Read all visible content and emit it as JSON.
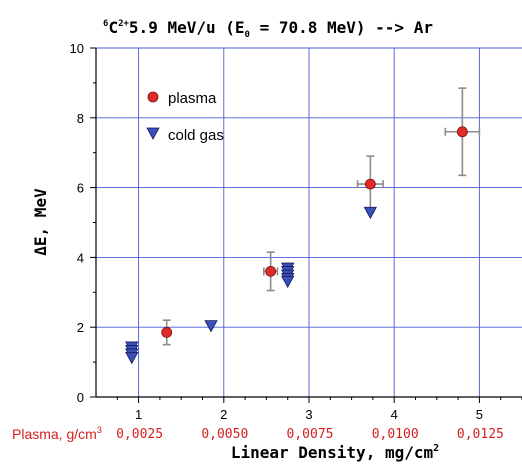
{
  "chart_data": {
    "type": "scatter",
    "title": {
      "super": "6",
      "base": "C",
      "charge": "2+",
      "rest_a": "5.9 MeV/u (E",
      "sub": "0",
      "rest_b": " = 70.8 MeV) --> Ar"
    },
    "xlabel": {
      "base": "Linear Density, mg/cm",
      "super": "2"
    },
    "ylabel": "ΔE, MeV",
    "xlim": [
      0.5,
      5.5
    ],
    "ylim": [
      0,
      10
    ],
    "x_ticks": [
      "1",
      "2",
      "3",
      "4",
      "5"
    ],
    "x_tick_values": [
      1,
      2,
      3,
      4,
      5
    ],
    "y_ticks": [
      "0",
      "2",
      "4",
      "6",
      "8",
      "10"
    ],
    "y_tick_values": [
      0,
      2,
      4,
      6,
      8,
      10
    ],
    "grid": true,
    "legend_position": "top-left",
    "plasma_axis": {
      "label": {
        "base": "Plasma, g/cm",
        "super": "3"
      },
      "ticks": [
        "0,0025",
        "0,0050",
        "0,0075",
        "0,0100",
        "0,0125"
      ],
      "color": "#d62020"
    },
    "series": [
      {
        "name": "plasma",
        "marker": "circle",
        "color": "#e02a2a",
        "points": [
          {
            "x": 1.33,
            "y": 1.85,
            "xerr": 0,
            "yerr": 0.35
          },
          {
            "x": 2.55,
            "y": 3.6,
            "xerr": 0.08,
            "yerr": 0.55
          },
          {
            "x": 3.72,
            "y": 6.1,
            "xerr": 0.15,
            "yerr": 0.8
          },
          {
            "x": 4.8,
            "y": 7.6,
            "xerr": 0.2,
            "yerr": 1.25
          }
        ]
      },
      {
        "name": "cold gas",
        "marker": "triangle-down",
        "color": "#3a4fb8",
        "points": [
          {
            "x": 0.92,
            "y": 1.42
          },
          {
            "x": 0.92,
            "y": 1.32
          },
          {
            "x": 0.92,
            "y": 1.22
          },
          {
            "x": 0.92,
            "y": 1.12
          },
          {
            "x": 1.85,
            "y": 2.03
          },
          {
            "x": 2.75,
            "y": 3.68
          },
          {
            "x": 2.75,
            "y": 3.58
          },
          {
            "x": 2.75,
            "y": 3.48
          },
          {
            "x": 2.75,
            "y": 3.38
          },
          {
            "x": 2.75,
            "y": 3.3
          },
          {
            "x": 3.72,
            "y": 5.28
          }
        ]
      }
    ]
  },
  "colors": {
    "grid": "#4b5bd6",
    "axis": "#000000",
    "errorbar": "#8c8c8c"
  }
}
